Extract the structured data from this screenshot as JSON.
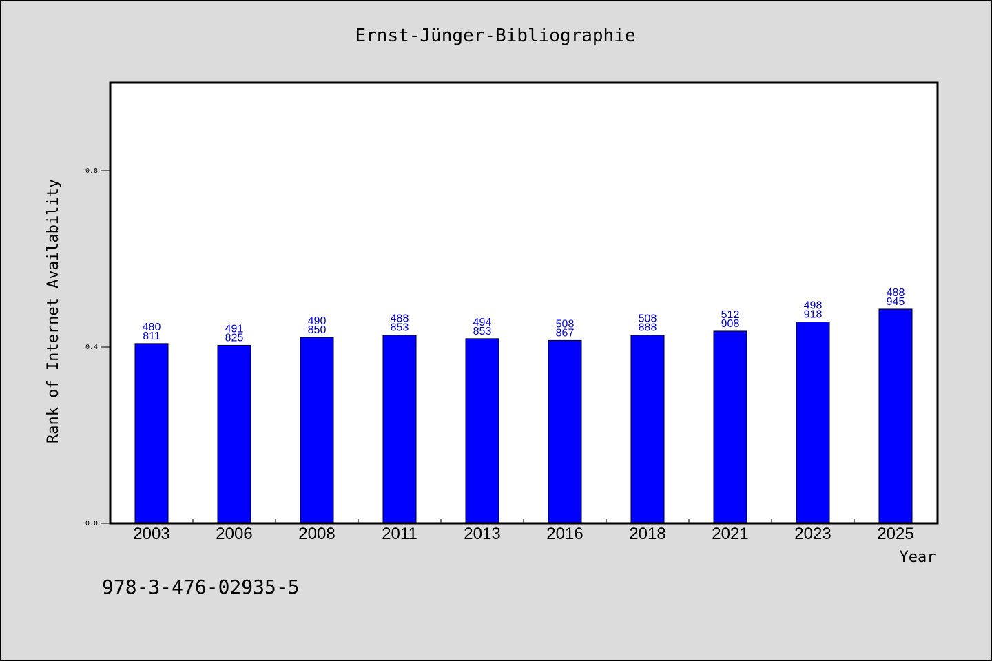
{
  "chart_data": {
    "type": "bar",
    "title": "Ernst-Jünger-Bibliographie",
    "xlabel": "Year",
    "ylabel": "Rank of Internet Availability",
    "categories": [
      "2003",
      "2006",
      "2008",
      "2011",
      "2013",
      "2016",
      "2018",
      "2021",
      "2023",
      "2025"
    ],
    "values": [
      0.408,
      0.404,
      0.422,
      0.427,
      0.419,
      0.415,
      0.427,
      0.436,
      0.457,
      0.486
    ],
    "data_labels": [
      [
        "480",
        "811"
      ],
      [
        "491",
        "825"
      ],
      [
        "490",
        "850"
      ],
      [
        "488",
        "853"
      ],
      [
        "494",
        "853"
      ],
      [
        "508",
        "867"
      ],
      [
        "508",
        "888"
      ],
      [
        "512",
        "908"
      ],
      [
        "498",
        "918"
      ],
      [
        "488",
        "945"
      ]
    ],
    "yticks": [
      0.0,
      0.4,
      0.8
    ],
    "ytick_labels": [
      "0.0",
      "0.4",
      "0.8"
    ],
    "ylim": [
      0,
      1.0
    ],
    "grid": false,
    "bar_color": "#0000ff",
    "label_color": "#0000cc",
    "background_color": "#dcdcdc",
    "plot_background": "#ffffff"
  },
  "footer": {
    "isbn": "978-3-476-02935-5"
  }
}
